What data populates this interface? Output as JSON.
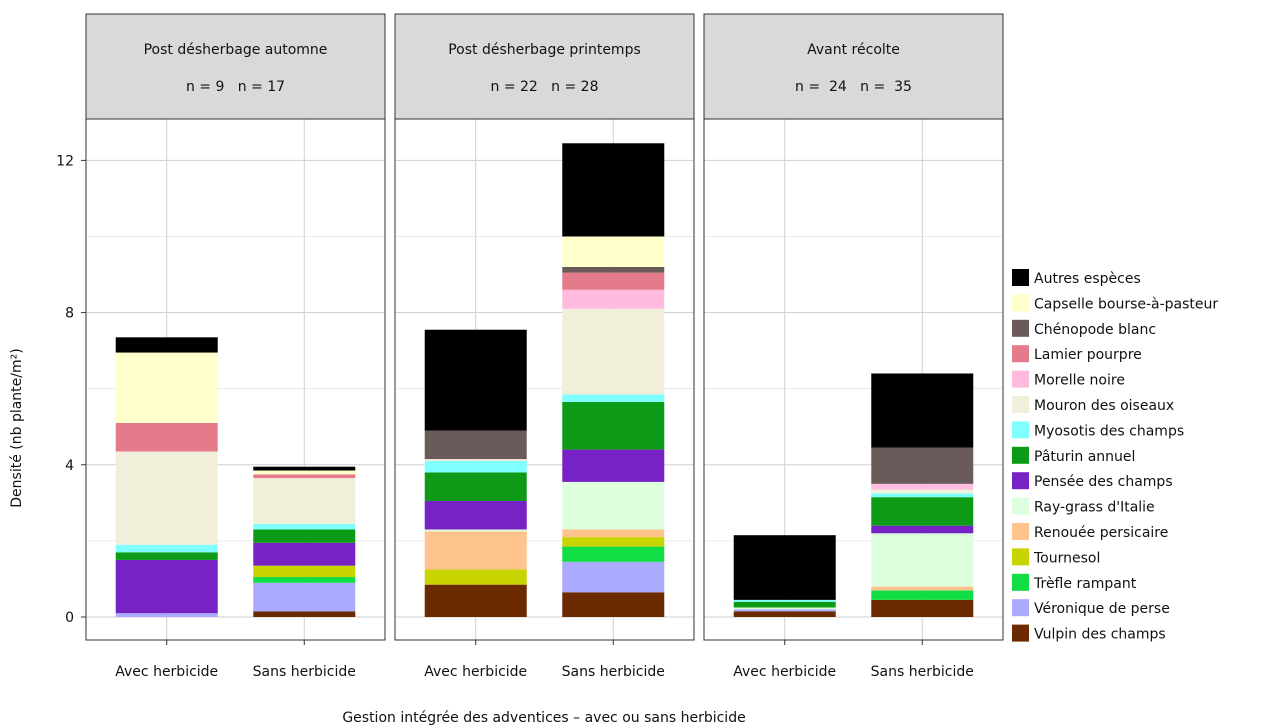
{
  "chart_data": {
    "type": "bar",
    "stacked": true,
    "ylabel": "Densité (nb plante/m²)",
    "xlabel": "Gestion intégrée des adventices – avec ou sans herbicide",
    "ylim": [
      0,
      13
    ],
    "yticks": [
      "0",
      "4",
      "8",
      "12"
    ],
    "ytick_values": [
      0,
      4,
      8,
      12
    ],
    "grid": true,
    "legend_position": "right",
    "categories": [
      "Avec herbicide",
      "Sans herbicide"
    ],
    "panels": [
      {
        "title": "Post désherbage automne",
        "n_label": "n = 9   n = 17"
      },
      {
        "title": "Post désherbage printemps",
        "n_label": "n = 22   n = 28"
      },
      {
        "title": "Avant récolte",
        "n_label": "n =  24   n =  35"
      }
    ],
    "series": [
      {
        "name": "Vulpin des champs",
        "color": "#6b2a00",
        "values": [
          [
            0.0,
            0.15
          ],
          [
            0.85,
            0.65
          ],
          [
            0.15,
            0.45
          ]
        ]
      },
      {
        "name": "Véronique de perse",
        "color": "#aaaaff",
        "values": [
          [
            0.1,
            0.75
          ],
          [
            0.0,
            0.8
          ],
          [
            0.05,
            0.0
          ]
        ]
      },
      {
        "name": "Trèfle rampant",
        "color": "#11dd44",
        "values": [
          [
            0.0,
            0.15
          ],
          [
            0.0,
            0.4
          ],
          [
            0.0,
            0.25
          ]
        ]
      },
      {
        "name": "Tournesol",
        "color": "#c8d400",
        "values": [
          [
            0.0,
            0.3
          ],
          [
            0.4,
            0.25
          ],
          [
            0.0,
            0.0
          ]
        ]
      },
      {
        "name": "Renouée persicaire",
        "color": "#ffc38e",
        "values": [
          [
            0.0,
            0.0
          ],
          [
            1.0,
            0.2
          ],
          [
            0.0,
            0.1
          ]
        ]
      },
      {
        "name": "Ray-grass d'Italie",
        "color": "#ddffdd",
        "values": [
          [
            0.0,
            0.0
          ],
          [
            0.05,
            1.25
          ],
          [
            0.05,
            1.4
          ]
        ]
      },
      {
        "name": "Pensée des champs",
        "color": "#7722c4",
        "values": [
          [
            1.4,
            0.6
          ],
          [
            0.75,
            0.85
          ],
          [
            0.0,
            0.2
          ]
        ]
      },
      {
        "name": "Pâturin annuel",
        "color": "#0c9a17",
        "values": [
          [
            0.2,
            0.35
          ],
          [
            0.75,
            1.25
          ],
          [
            0.15,
            0.75
          ]
        ]
      },
      {
        "name": "Myosotis des champs",
        "color": "#80ffff",
        "values": [
          [
            0.2,
            0.15
          ],
          [
            0.3,
            0.2
          ],
          [
            0.05,
            0.1
          ]
        ]
      },
      {
        "name": "Mouron des oiseaux",
        "color": "#f1eeda",
        "values": [
          [
            2.45,
            1.2
          ],
          [
            0.05,
            2.25
          ],
          [
            0.0,
            0.1
          ]
        ]
      },
      {
        "name": "Morelle noire",
        "color": "#ffbbdd",
        "values": [
          [
            0.0,
            0.0
          ],
          [
            0.0,
            0.5
          ],
          [
            0.0,
            0.15
          ]
        ]
      },
      {
        "name": "Lamier pourpre",
        "color": "#e57a8b",
        "values": [
          [
            0.75,
            0.1
          ],
          [
            0.0,
            0.45
          ],
          [
            0.0,
            0.0
          ]
        ]
      },
      {
        "name": "Chénopode blanc",
        "color": "#6b5a5a",
        "values": [
          [
            0.0,
            0.0
          ],
          [
            0.75,
            0.15
          ],
          [
            0.0,
            0.95
          ]
        ]
      },
      {
        "name": "Capselle bourse-à-pasteur",
        "color": "#ffffcc",
        "values": [
          [
            1.85,
            0.1
          ],
          [
            0.0,
            0.8
          ],
          [
            0.0,
            0.0
          ]
        ]
      },
      {
        "name": "Autres espèces",
        "color": "#000000",
        "values": [
          [
            0.4,
            0.1
          ],
          [
            2.65,
            2.45
          ],
          [
            1.7,
            1.95
          ]
        ]
      }
    ],
    "legend_order": [
      "Autres espèces",
      "Capselle bourse-à-pasteur",
      "Chénopode blanc",
      "Lamier pourpre",
      "Morelle noire",
      "Mouron des oiseaux",
      "Myosotis des champs",
      "Pâturin annuel",
      "Pensée des champs",
      "Ray-grass d'Italie",
      "Renouée persicaire",
      "Tournesol",
      "Trèfle rampant",
      "Véronique de perse",
      "Vulpin des champs"
    ]
  }
}
